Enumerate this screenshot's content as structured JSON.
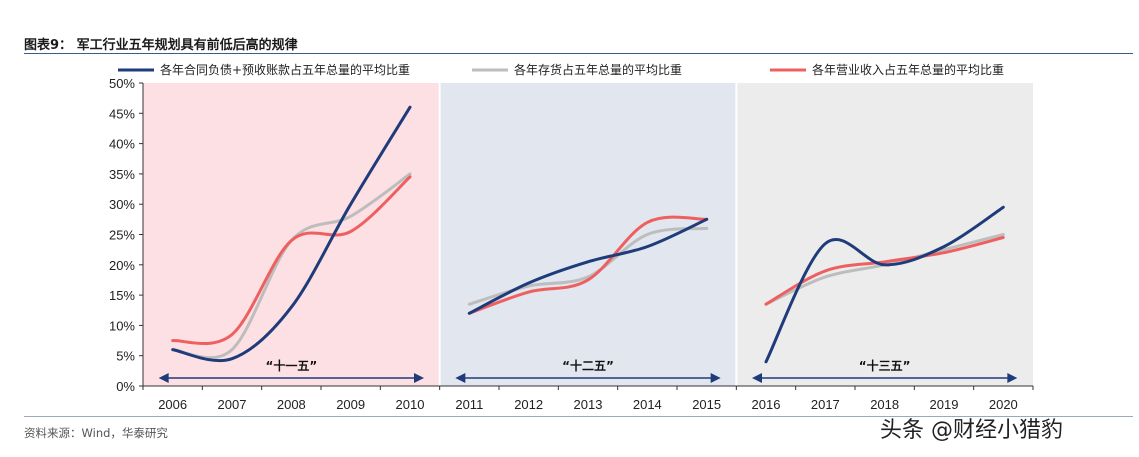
{
  "header": {
    "title": "图表9：  军工行业五年规划具有前低后高的规律"
  },
  "footer": {
    "source": "资料来源：Wind，华泰研究",
    "watermark": "头条 @财经小猎豹"
  },
  "chart_data": {
    "type": "line",
    "title": "",
    "ylim": [
      0,
      50
    ],
    "y_ticks": [
      "0%",
      "5%",
      "10%",
      "15%",
      "20%",
      "25%",
      "30%",
      "35%",
      "40%",
      "45%",
      "50%"
    ],
    "legend_position": "top",
    "periods": [
      {
        "label": "“十一五”",
        "years": [
          "2006",
          "2007",
          "2008",
          "2009",
          "2010"
        ],
        "background": "#fde0e3"
      },
      {
        "label": "“十二五”",
        "years": [
          "2011",
          "2012",
          "2013",
          "2014",
          "2015"
        ],
        "background": "#e1e6ef"
      },
      {
        "label": "“十三五”",
        "years": [
          "2016",
          "2017",
          "2018",
          "2019",
          "2020"
        ],
        "background": "#ececec"
      }
    ],
    "series": [
      {
        "name": "各年合同负债+预收账款占五年总量的平均比重",
        "color": "#1f3b7a",
        "values": [
          [
            6,
            4.5,
            13,
            30,
            46
          ],
          [
            12,
            17,
            20.5,
            23,
            27.5
          ],
          [
            4,
            23.5,
            20,
            23,
            29.5
          ]
        ]
      },
      {
        "name": "各年存货占五年总量的平均比重",
        "color": "#bdbdbd",
        "values": [
          [
            6,
            6,
            24,
            28,
            35
          ],
          [
            13.5,
            16.5,
            18,
            25,
            26
          ],
          [
            13.5,
            18,
            20,
            22.5,
            25
          ]
        ]
      },
      {
        "name": "各年营业收入占五年总量的平均比重",
        "color": "#ee6060",
        "values": [
          [
            7.5,
            8.5,
            24,
            25.5,
            34.5
          ],
          [
            12,
            15.5,
            17.5,
            27,
            27.5
          ],
          [
            13.5,
            19,
            20.5,
            22,
            24.5
          ]
        ]
      }
    ]
  }
}
